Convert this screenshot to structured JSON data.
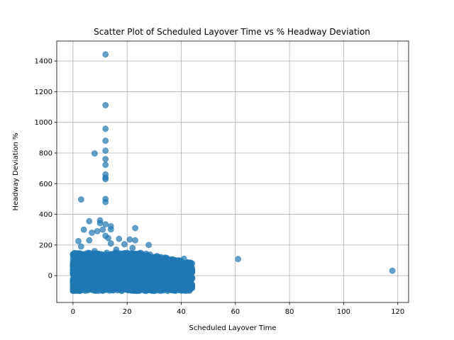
{
  "chart_data": {
    "type": "scatter",
    "title": "Scatter Plot of Scheduled Layover Time vs % Headway Deviation",
    "xlabel": "Scheduled Layover Time",
    "ylabel": "Headway Deviation %",
    "xlim": [
      -6,
      124
    ],
    "ylim": [
      -175,
      1530
    ],
    "xticks": [
      0,
      20,
      40,
      60,
      80,
      100,
      120
    ],
    "yticks": [
      0,
      200,
      400,
      600,
      800,
      1000,
      1200,
      1400
    ],
    "grid": true,
    "marker_color": "#1f77b4",
    "marker_alpha": 0.7,
    "series": [
      {
        "points": [
          [
            12,
            1443
          ],
          [
            12,
            1112
          ],
          [
            12,
            958
          ],
          [
            12,
            880
          ],
          [
            12,
            815
          ],
          [
            8,
            797
          ],
          [
            12,
            760
          ],
          [
            12,
            723
          ],
          [
            12,
            660
          ],
          [
            12,
            640
          ],
          [
            12,
            630
          ],
          [
            3,
            497
          ],
          [
            12,
            500
          ],
          [
            12,
            480
          ],
          [
            6,
            355
          ],
          [
            10,
            360
          ],
          [
            14,
            322
          ],
          [
            14,
            302
          ],
          [
            23,
            310
          ],
          [
            12,
            335
          ],
          [
            10,
            342
          ],
          [
            11,
            300
          ],
          [
            4,
            300
          ],
          [
            9,
            290
          ],
          [
            7,
            280
          ],
          [
            2,
            225
          ],
          [
            12,
            260
          ],
          [
            13,
            245
          ],
          [
            17,
            240
          ],
          [
            21,
            236
          ],
          [
            23,
            230
          ],
          [
            28,
            200
          ],
          [
            3,
            190
          ],
          [
            14,
            210
          ],
          [
            19,
            205
          ],
          [
            6,
            230
          ],
          [
            61,
            108
          ],
          [
            118,
            32
          ],
          [
            41,
            110
          ],
          [
            38,
            95
          ],
          [
            43,
            70
          ],
          [
            35,
            110
          ],
          [
            33,
            112
          ],
          [
            30,
            105
          ],
          [
            26,
            100
          ],
          [
            22,
            180
          ],
          [
            16,
            170
          ],
          [
            8,
            160
          ],
          [
            44,
            20
          ],
          [
            44,
            -20
          ],
          [
            43,
            -40
          ],
          [
            36,
            -45
          ],
          [
            31,
            -90
          ],
          [
            27,
            -70
          ]
        ],
        "band": {
          "x_range": [
            0,
            44
          ],
          "y_range": [
            -100,
            150
          ],
          "count": 2200
        }
      }
    ]
  }
}
